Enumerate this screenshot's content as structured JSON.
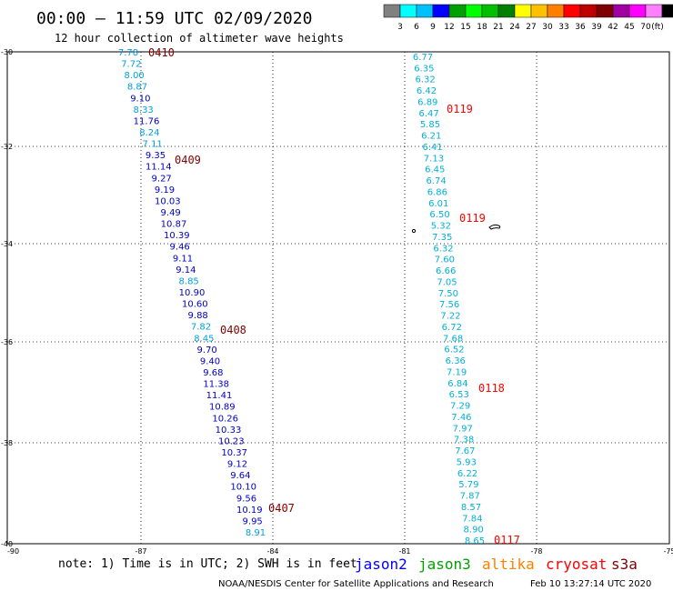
{
  "header": {
    "title": "00:00 – 11:59 UTC 02/09/2020",
    "subtitle": "12 hour collection of altimeter wave heights"
  },
  "legend": {
    "colors": [
      "#808080",
      "#00ffff",
      "#00c0ff",
      "#0000ff",
      "#00a000",
      "#00ff00",
      "#00c000",
      "#008000",
      "#ffff00",
      "#ffc000",
      "#ff8000",
      "#ff0000",
      "#c00000",
      "#800000",
      "#a000a0",
      "#ff00ff",
      "#ff80ff",
      "#000000"
    ],
    "labels": [
      "3",
      "6",
      "9",
      "12",
      "15",
      "18",
      "21",
      "24",
      "27",
      "30",
      "33",
      "36",
      "39",
      "42",
      "45",
      "70",
      "(ft)"
    ]
  },
  "axes": {
    "y_ticks": [
      "-30",
      "-32",
      "-34",
      "-36",
      "-38",
      "-40"
    ],
    "x_ticks": [
      "-90",
      "-87",
      "-84",
      "-81",
      "-78",
      "-75"
    ]
  },
  "tracks": [
    {
      "color": "#00a0e0",
      "values": [
        "7.78",
        "7.72",
        "8.00",
        "8.87"
      ]
    },
    {
      "color": "#0000c0",
      "values": [
        "9.10"
      ]
    },
    {
      "color": "#00a0e0",
      "values": [
        "8.33"
      ]
    },
    {
      "color": "#0000c0",
      "values": [
        "11.76"
      ]
    },
    {
      "color": "#00a0e0",
      "values": [
        "8.24",
        "7.11"
      ]
    },
    {
      "color": "#0000c0",
      "values": [
        "9.35",
        "11.14",
        "9.27",
        "9.19",
        "10.03",
        "9.49",
        "10.87",
        "10.39",
        "9.46",
        "9.11",
        "9.14"
      ]
    },
    {
      "color": "#00a0e0",
      "values": [
        "8.85"
      ]
    },
    {
      "color": "#0000c0",
      "values": [
        "10.90",
        "10.60",
        "9.88"
      ]
    },
    {
      "color": "#00a0e0",
      "values": [
        "7.82",
        "8.45"
      ]
    },
    {
      "color": "#0000c0",
      "values": [
        "9.70",
        "9.40",
        "9.68",
        "11.38",
        "11.41",
        "10.89",
        "10.26",
        "10.33",
        "10.23",
        "10.37",
        "9.12",
        "9.64",
        "10.10",
        "9.56",
        "10.19",
        "9.95"
      ]
    },
    {
      "color": "#00a0e0",
      "values": [
        "8.91"
      ]
    }
  ],
  "track_right": [
    "6.77",
    "6.35",
    "6.32",
    "6.42",
    "6.89",
    "6.47",
    "5.85",
    "6.21",
    "6.41",
    "7.13",
    "6.45",
    "6.74",
    "6.86",
    "6.01",
    "6.50",
    "5.32",
    "7.35",
    "6.32",
    "7.60",
    "6.66",
    "7.05",
    "7.50",
    "7.56",
    "7.22",
    "6.72",
    "7.68",
    "6.52",
    "6.36",
    "7.19",
    "6.84",
    "6.53",
    "7.29",
    "7.46",
    "7.97",
    "7.38",
    "7.67",
    "5.93",
    "6.22",
    "5.79",
    "7.87",
    "8.57",
    "7.84",
    "8.90",
    "8.65"
  ],
  "time_labels": [
    {
      "text": "0410",
      "color": "#800000"
    },
    {
      "text": "0409",
      "color": "#800000"
    },
    {
      "text": "0408",
      "color": "#800000"
    },
    {
      "text": "0407",
      "color": "#800000"
    },
    {
      "text": "0119",
      "color": "#ff0000"
    },
    {
      "text": "0119",
      "color": "#ff0000"
    },
    {
      "text": "0118",
      "color": "#ff0000"
    },
    {
      "text": "0117",
      "color": "#ff0000"
    }
  ],
  "footer": {
    "note": "note: 1) Time is in UTC; 2) SWH is in feet",
    "satellites": [
      {
        "name": "jason2",
        "color": "#0000ff"
      },
      {
        "name": "jason3",
        "color": "#00a000"
      },
      {
        "name": "altika",
        "color": "#ff8000"
      },
      {
        "name": "cryosat",
        "color": "#ff0000"
      },
      {
        "name": "s3a",
        "color": "#800000"
      }
    ],
    "credit": "NOAA/NESDIS Center for Satellite Applications and Research",
    "timestamp": "Feb 10 13:27:14 UTC 2020"
  }
}
